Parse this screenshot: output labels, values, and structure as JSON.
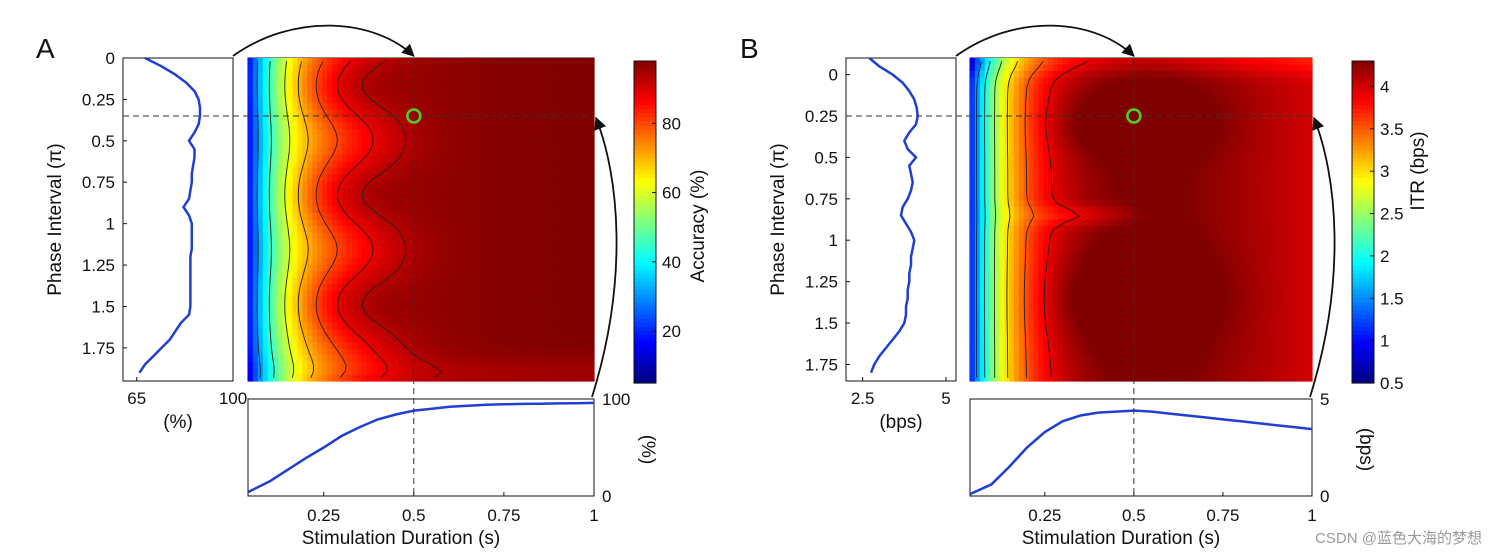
{
  "watermark": "CSDN @蓝色大海的梦想",
  "colors": {
    "curve": "#1f3fd0",
    "marker": "#4cd11c",
    "axis": "#111111",
    "dash": "#333333"
  },
  "chart_data": [
    {
      "panel": "A",
      "type": "heatmap",
      "xlabel": "Stimulation Duration (s)",
      "ylabel": "Phase Interval (π)",
      "colorbar_label": "Accuracy (%)",
      "colorbar_range": [
        5,
        98
      ],
      "colorbar_ticks": [
        {
          "v": 20,
          "label": "20"
        },
        {
          "v": 40,
          "label": "40"
        },
        {
          "v": 60,
          "label": "60"
        },
        {
          "v": 80,
          "label": "80"
        }
      ],
      "x_range": [
        0.04,
        1.0
      ],
      "x_ticks": [
        {
          "v": 0.25,
          "label": "0.25"
        },
        {
          "v": 0.5,
          "label": "0.5"
        },
        {
          "v": 0.75,
          "label": "0.75"
        },
        {
          "v": 1.0,
          "label": "1"
        }
      ],
      "y_range": [
        0,
        1.95
      ],
      "y_ticks": [
        {
          "v": 0,
          "label": "0"
        },
        {
          "v": 0.25,
          "label": "0.25"
        },
        {
          "v": 0.5,
          "label": "0.5"
        },
        {
          "v": 0.75,
          "label": "0.75"
        },
        {
          "v": 1.0,
          "label": "1"
        },
        {
          "v": 1.25,
          "label": "1.25"
        },
        {
          "v": 1.5,
          "label": "1.5"
        },
        {
          "v": 1.75,
          "label": "1.75"
        }
      ],
      "optimum": {
        "x": 0.5,
        "y": 0.35
      },
      "contour_levels": [
        15,
        30,
        45,
        60,
        70,
        80,
        88,
        93
      ],
      "left_profile": {
        "label": "(%)",
        "range": [
          60,
          100
        ],
        "ticks": [
          {
            "v": 65,
            "label": "65"
          },
          {
            "v": 100,
            "label": "100"
          }
        ],
        "y": [
          0,
          0.05,
          0.1,
          0.15,
          0.2,
          0.25,
          0.3,
          0.35,
          0.4,
          0.45,
          0.5,
          0.55,
          0.6,
          0.65,
          0.7,
          0.75,
          0.8,
          0.85,
          0.9,
          0.95,
          1.0,
          1.05,
          1.1,
          1.15,
          1.2,
          1.25,
          1.3,
          1.35,
          1.4,
          1.45,
          1.5,
          1.55,
          1.6,
          1.65,
          1.7,
          1.75,
          1.8,
          1.85,
          1.9
        ],
        "values": [
          68,
          74,
          79,
          83,
          86,
          87.5,
          88,
          88,
          87.5,
          86,
          84,
          86,
          86,
          85.5,
          85,
          85,
          84.5,
          84,
          82,
          84,
          85,
          85,
          85,
          85,
          84.5,
          84.5,
          84.5,
          84.5,
          84.5,
          84.5,
          84.5,
          84,
          81,
          79,
          77,
          74,
          71,
          68,
          66
        ]
      },
      "bottom_profile": {
        "label": "(%)",
        "range": [
          0,
          100
        ],
        "ticks": [
          {
            "v": 0,
            "label": "0"
          },
          {
            "v": 100,
            "label": "100"
          }
        ],
        "x": [
          0.04,
          0.1,
          0.15,
          0.2,
          0.25,
          0.3,
          0.35,
          0.4,
          0.45,
          0.5,
          0.55,
          0.6,
          0.65,
          0.7,
          0.75,
          0.8,
          0.85,
          0.9,
          0.95,
          1.0
        ],
        "values": [
          4,
          15,
          27,
          39,
          50,
          62,
          71,
          79,
          84,
          88,
          90,
          92,
          93,
          94,
          94.5,
          95,
          95.2,
          95.5,
          95.7,
          96
        ]
      }
    },
    {
      "panel": "B",
      "type": "heatmap",
      "xlabel": "Stimulation Duration (s)",
      "ylabel": "Phase Interval (π)",
      "colorbar_label": "ITR (bps)",
      "colorbar_range": [
        0.5,
        4.3
      ],
      "colorbar_ticks": [
        {
          "v": 0.5,
          "label": "0.5"
        },
        {
          "v": 1.0,
          "label": "1"
        },
        {
          "v": 1.5,
          "label": "1.5"
        },
        {
          "v": 2.0,
          "label": "2"
        },
        {
          "v": 2.5,
          "label": "2.5"
        },
        {
          "v": 3.0,
          "label": "3"
        },
        {
          "v": 3.5,
          "label": "3.5"
        },
        {
          "v": 4.0,
          "label": "4"
        }
      ],
      "x_range": [
        0.04,
        1.0
      ],
      "x_ticks": [
        {
          "v": 0.25,
          "label": "0.25"
        },
        {
          "v": 0.5,
          "label": "0.5"
        },
        {
          "v": 0.75,
          "label": "0.75"
        },
        {
          "v": 1.0,
          "label": "1"
        }
      ],
      "y_range": [
        -0.1,
        1.85
      ],
      "y_ticks": [
        {
          "v": 0,
          "label": "0"
        },
        {
          "v": 0.25,
          "label": "0.25"
        },
        {
          "v": 0.5,
          "label": "0.5"
        },
        {
          "v": 0.75,
          "label": "0.75"
        },
        {
          "v": 1.0,
          "label": "1"
        },
        {
          "v": 1.25,
          "label": "1.25"
        },
        {
          "v": 1.5,
          "label": "1.5"
        },
        {
          "v": 1.75,
          "label": "1.75"
        }
      ],
      "optimum": {
        "x": 0.5,
        "y": 0.25
      },
      "contour_levels": [
        1.0,
        1.5,
        2.0,
        2.5,
        3.0,
        3.5,
        3.9
      ],
      "left_profile": {
        "label": "(bps)",
        "range": [
          2,
          5.3
        ],
        "ticks": [
          {
            "v": 2.5,
            "label": "2.5"
          },
          {
            "v": 5,
            "label": "5"
          }
        ],
        "y": [
          -0.1,
          -0.05,
          0,
          0.05,
          0.1,
          0.15,
          0.2,
          0.25,
          0.3,
          0.35,
          0.4,
          0.45,
          0.5,
          0.55,
          0.6,
          0.65,
          0.7,
          0.75,
          0.8,
          0.85,
          0.9,
          0.95,
          1.0,
          1.05,
          1.1,
          1.15,
          1.2,
          1.25,
          1.3,
          1.35,
          1.4,
          1.45,
          1.5,
          1.55,
          1.6,
          1.65,
          1.7,
          1.75,
          1.8
        ],
        "values": [
          2.7,
          3.0,
          3.4,
          3.7,
          3.9,
          4.05,
          4.12,
          4.15,
          4.1,
          3.9,
          3.75,
          3.85,
          4.1,
          3.9,
          3.95,
          4.0,
          3.95,
          3.85,
          3.7,
          3.65,
          3.8,
          3.95,
          4.05,
          4.0,
          3.95,
          3.95,
          3.9,
          3.9,
          3.85,
          3.85,
          3.8,
          3.8,
          3.75,
          3.6,
          3.4,
          3.2,
          3.0,
          2.85,
          2.75
        ]
      },
      "bottom_profile": {
        "label": "(bps)",
        "range": [
          0,
          5
        ],
        "ticks": [
          {
            "v": 0,
            "label": "0"
          },
          {
            "v": 5,
            "label": "5"
          }
        ],
        "x": [
          0.04,
          0.1,
          0.15,
          0.2,
          0.25,
          0.3,
          0.35,
          0.4,
          0.45,
          0.5,
          0.55,
          0.6,
          0.65,
          0.7,
          0.75,
          0.8,
          0.85,
          0.9,
          0.95,
          1.0
        ],
        "values": [
          0.1,
          0.6,
          1.5,
          2.5,
          3.3,
          3.85,
          4.15,
          4.3,
          4.35,
          4.4,
          4.35,
          4.25,
          4.15,
          4.05,
          3.95,
          3.85,
          3.75,
          3.65,
          3.55,
          3.45
        ]
      }
    }
  ]
}
